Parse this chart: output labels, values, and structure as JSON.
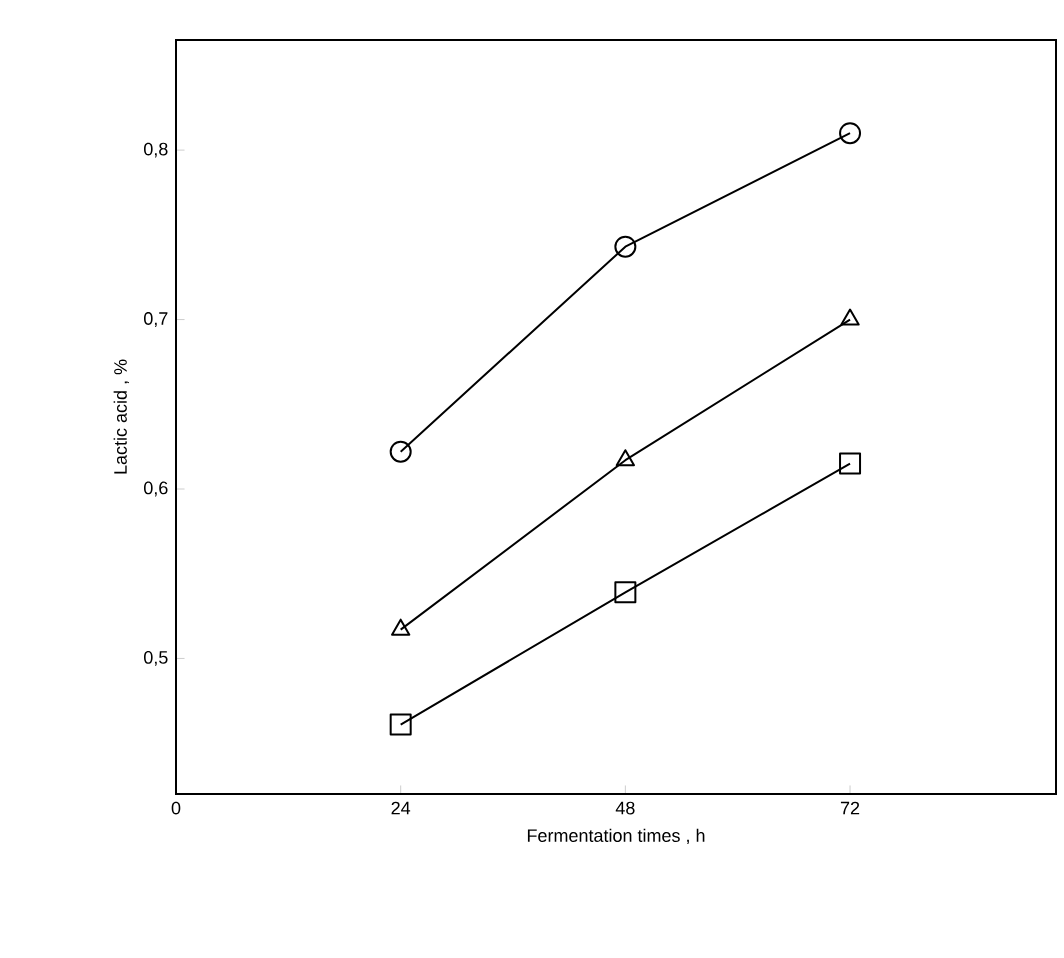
{
  "chart_data": {
    "type": "line",
    "xlabel": "Fermentation times , h",
    "ylabel": "Lactic acid , %",
    "x": [
      24,
      48,
      72
    ],
    "series": [
      {
        "color": "#000000",
        "marker": "circle",
        "values": [
          0.622,
          0.743,
          0.81
        ]
      },
      {
        "color": "#000000",
        "marker": "triangle",
        "values": [
          0.517,
          0.617,
          0.7
        ]
      },
      {
        "color": "#000000",
        "marker": "square",
        "values": [
          0.461,
          0.539,
          0.615
        ]
      }
    ],
    "xlim": [
      0,
      94
    ],
    "ylim": [
      0.42,
      0.865
    ],
    "xticks": [
      0,
      24,
      48,
      72
    ],
    "yticks": [
      {
        "value": 0.5,
        "label": "0,5"
      },
      {
        "value": 0.6,
        "label": "0,6"
      },
      {
        "value": 0.7,
        "label": "0,7"
      },
      {
        "value": 0.8,
        "label": "0,8"
      }
    ],
    "line_style": "solid"
  }
}
